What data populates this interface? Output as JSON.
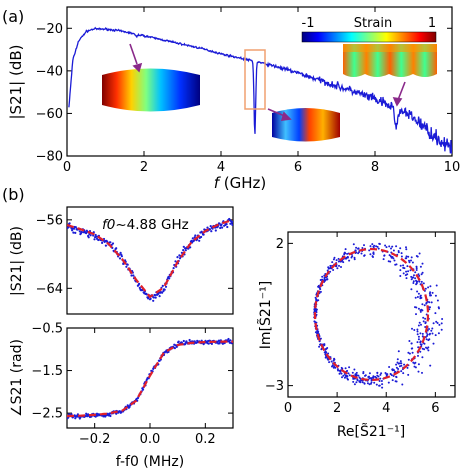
{
  "panels": {
    "a": "(a)",
    "b": "(b)"
  },
  "colors": {
    "series": "#1b1bd6",
    "fit": "#e0202a",
    "highlight_box": "#f0a070",
    "arrow": "#8a2a8a"
  },
  "colorbar": {
    "label": "Strain",
    "min_label": "-1",
    "max_label": "1"
  },
  "chart_data": [
    {
      "id": "a",
      "type": "line",
      "xlabel_italic": "f",
      "xlabel_rest": " (GHz)",
      "ylabel": "|S21| (dB)",
      "xlim": [
        0,
        10
      ],
      "ylim": [
        -80,
        -10
      ],
      "xticks": [
        "0",
        "2",
        "4",
        "6",
        "8",
        "10"
      ],
      "yticks": [
        "-20",
        "-40",
        "-60",
        "-80"
      ],
      "resonance_dips": [
        {
          "f": 1.8,
          "depth_db": 1.2
        },
        {
          "f": 4.88,
          "depth_db": 34
        },
        {
          "f": 8.55,
          "depth_db": 10
        }
      ],
      "series": [
        {
          "x": [
            0.05,
            0.15,
            0.3,
            0.5,
            0.7,
            1.0,
            1.3,
            1.6,
            2.0,
            2.5,
            3.0,
            3.5,
            4.0,
            4.5,
            5.0,
            5.5,
            6.0,
            6.5,
            7.0,
            7.5,
            8.0,
            8.5,
            9.0,
            9.5,
            10.0
          ],
          "y": [
            -57,
            -35,
            -26,
            -21.5,
            -20.3,
            -20.4,
            -21.0,
            -22.0,
            -23.5,
            -25.5,
            -27.5,
            -29.5,
            -32.0,
            -34.0,
            -36.0,
            -38.3,
            -41.0,
            -44.0,
            -47.0,
            -50.0,
            -53.5,
            -57.5,
            -62.0,
            -70.0,
            -77.0
          ]
        }
      ]
    },
    {
      "id": "b-mag",
      "type": "line",
      "ylabel": "|S21| (dB)",
      "annotation_italic": "f0",
      "annotation_rest": "~4.88 GHz",
      "xlim": [
        -0.3,
        0.3
      ],
      "ylim": [
        -67,
        -54.5
      ],
      "yticks": [
        "-56",
        "-64"
      ],
      "series": [
        {
          "name": "data",
          "x": [
            -0.3,
            -0.25,
            -0.2,
            -0.15,
            -0.1,
            -0.05,
            0.0,
            0.05,
            0.1,
            0.15,
            0.2,
            0.25,
            0.3
          ],
          "y": [
            -56.8,
            -57.2,
            -57.8,
            -58.8,
            -60.6,
            -63.2,
            -65.2,
            -64.0,
            -60.8,
            -58.6,
            -57.3,
            -56.6,
            -56.2
          ]
        },
        {
          "name": "fit",
          "x": [
            -0.3,
            -0.25,
            -0.2,
            -0.15,
            -0.1,
            -0.05,
            0.0,
            0.05,
            0.1,
            0.15,
            0.2,
            0.25,
            0.3
          ],
          "y": [
            -56.6,
            -57.1,
            -57.7,
            -58.8,
            -60.6,
            -63.0,
            -65.0,
            -63.9,
            -60.9,
            -58.6,
            -57.3,
            -56.5,
            -56.0
          ]
        }
      ]
    },
    {
      "id": "b-phase",
      "type": "line",
      "xlabel": "f-f0 (MHz)",
      "ylabel": "∠S21 (rad)",
      "xlim": [
        -0.3,
        0.3
      ],
      "ylim": [
        -2.85,
        -0.5
      ],
      "xticks": [
        "-0.2",
        "0.0",
        "0.2"
      ],
      "yticks": [
        "-0.5",
        "-1.5",
        "-2.5"
      ],
      "series": [
        {
          "name": "data",
          "x": [
            -0.3,
            -0.25,
            -0.2,
            -0.15,
            -0.1,
            -0.05,
            0.0,
            0.05,
            0.1,
            0.15,
            0.2,
            0.25,
            0.3
          ],
          "y": [
            -2.58,
            -2.57,
            -2.55,
            -2.53,
            -2.45,
            -2.2,
            -1.6,
            -1.1,
            -0.88,
            -0.84,
            -0.83,
            -0.83,
            -0.82
          ]
        },
        {
          "name": "fit",
          "x": [
            -0.3,
            -0.25,
            -0.2,
            -0.15,
            -0.1,
            -0.05,
            0.0,
            0.05,
            0.1,
            0.15,
            0.2,
            0.25,
            0.3
          ],
          "y": [
            -2.57,
            -2.56,
            -2.54,
            -2.51,
            -2.44,
            -2.21,
            -1.62,
            -1.08,
            -0.9,
            -0.85,
            -0.83,
            -0.82,
            -0.82
          ]
        }
      ]
    },
    {
      "id": "b-circle",
      "type": "scatter",
      "xlabel": "Re[S̃21⁻¹]",
      "ylabel": "Im[S̃21⁻¹]",
      "xlim": [
        0,
        6.8
      ],
      "ylim": [
        -3.4,
        2.4
      ],
      "xticks": [
        "0",
        "2",
        "4",
        "6"
      ],
      "yticks": [
        "2",
        "-3"
      ],
      "fit_circle": {
        "center": [
          3.4,
          -0.5
        ],
        "radius": 2.3
      }
    }
  ]
}
